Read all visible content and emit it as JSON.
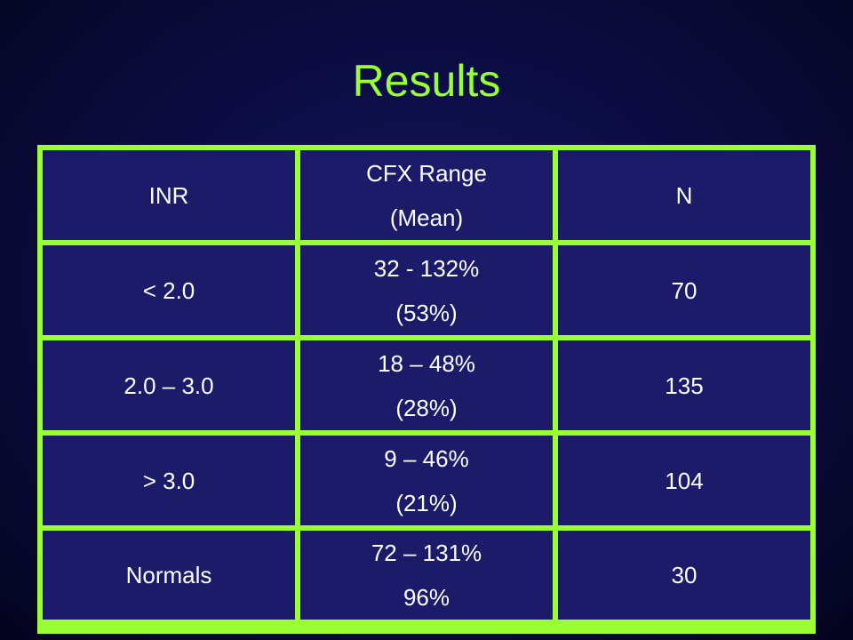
{
  "title": "Results",
  "table": {
    "headers": {
      "inr": "INR",
      "cfx_line1": "CFX Range",
      "cfx_line2": "(Mean)",
      "n": "N"
    },
    "rows": [
      {
        "inr": "< 2.0",
        "cfx_range": "32 - 132%",
        "cfx_mean": "(53%)",
        "n": "70"
      },
      {
        "inr": "2.0 – 3.0",
        "cfx_range": "18 – 48%",
        "cfx_mean": "(28%)",
        "n": "135"
      },
      {
        "inr": "> 3.0",
        "cfx_range": "9 – 46%",
        "cfx_mean": "(21%)",
        "n": "104"
      },
      {
        "inr": "Normals",
        "cfx_range": "72 – 131%",
        "cfx_mean": "96%",
        "n": "30"
      }
    ]
  },
  "colors": {
    "title": "#99ff33",
    "grid_border": "#99ff33",
    "cell_background": "#1b1b6a",
    "cell_text": "#ffffff",
    "background": "#0d0d45"
  }
}
